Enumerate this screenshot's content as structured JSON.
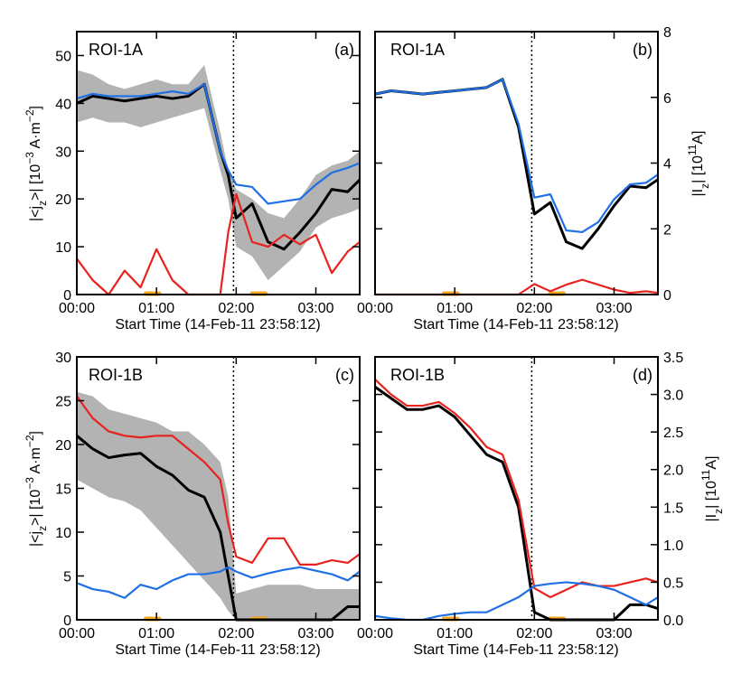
{
  "colors": {
    "black": "#000000",
    "red": "#e8221f",
    "blue": "#1f6fe5",
    "band": "#b3b3b3",
    "marker": "#f5a623"
  },
  "xaxis": {
    "ticks": [
      0,
      60,
      120,
      180
    ],
    "tick_labels": [
      "00:00",
      "01:00",
      "02:00",
      "03:00"
    ],
    "xlim": [
      0,
      213
    ],
    "xlabel": "Start Time (14-Feb-11 23:58:12)",
    "vline_x": 118
  },
  "markers": [
    {
      "x0": 52,
      "x1": 62
    },
    {
      "x0": 132,
      "x1": 142
    }
  ],
  "chart_data": [
    {
      "type": "line",
      "panel": "(a)",
      "roi": "ROI-1A",
      "ylabel": "|<j_z>| [10^-3 A·m^-2]",
      "ylim": [
        0,
        55
      ],
      "yticks": [
        0,
        10,
        20,
        30,
        40,
        50
      ],
      "ytick_labels": [
        "0",
        "10",
        "20",
        "30",
        "40",
        "50"
      ],
      "x": [
        0,
        12,
        24,
        36,
        48,
        60,
        72,
        84,
        96,
        108,
        114,
        120,
        132,
        144,
        156,
        168,
        180,
        192,
        204,
        213
      ],
      "band": {
        "lower": [
          36,
          37,
          36,
          36,
          35,
          36,
          37,
          38,
          39,
          26,
          20,
          10,
          8,
          3,
          6,
          9,
          14,
          16,
          17,
          18
        ],
        "upper": [
          47,
          46,
          44,
          43,
          44,
          45,
          44,
          44,
          48,
          34,
          26,
          22,
          20,
          17,
          16,
          20,
          25,
          27,
          28,
          30
        ]
      },
      "series": [
        {
          "name": "black",
          "color": "black",
          "values": [
            40,
            41.5,
            41,
            40.5,
            41,
            41.5,
            41,
            41.5,
            44,
            30,
            25,
            16,
            19,
            11,
            9.5,
            13,
            17,
            22,
            21.5,
            24
          ]
        },
        {
          "name": "blue",
          "color": "blue",
          "values": [
            41,
            42,
            41.5,
            41.5,
            41.5,
            42,
            42.5,
            42,
            44,
            30,
            26,
            23,
            22.5,
            19,
            19.5,
            20,
            23,
            25.5,
            26.5,
            27.5
          ]
        },
        {
          "name": "red",
          "color": "red",
          "values": [
            7.5,
            3,
            0,
            5,
            1.5,
            9.5,
            3,
            0,
            0,
            0,
            13,
            21,
            11,
            10,
            12.5,
            10.5,
            12.5,
            4.5,
            9,
            11
          ]
        }
      ]
    },
    {
      "type": "line",
      "panel": "(b)",
      "roi": "ROI-1A",
      "ylabel": "|I_z| [10^11 A]",
      "ylim": [
        0,
        8
      ],
      "yticks": [
        0,
        2,
        4,
        6,
        8
      ],
      "ytick_labels": [
        "0",
        "2",
        "4",
        "6",
        "8"
      ],
      "x": [
        0,
        12,
        24,
        36,
        48,
        60,
        72,
        84,
        96,
        108,
        120,
        132,
        144,
        156,
        168,
        180,
        192,
        204,
        213
      ],
      "series": [
        {
          "name": "black",
          "color": "black",
          "values": [
            6.1,
            6.2,
            6.15,
            6.1,
            6.15,
            6.2,
            6.25,
            6.3,
            6.55,
            5.1,
            2.45,
            2.8,
            1.6,
            1.4,
            2.0,
            2.7,
            3.3,
            3.25,
            3.5
          ]
        },
        {
          "name": "blue",
          "color": "blue",
          "values": [
            6.1,
            6.2,
            6.15,
            6.1,
            6.15,
            6.2,
            6.25,
            6.3,
            6.55,
            5.2,
            2.95,
            3.05,
            1.95,
            1.9,
            2.2,
            2.9,
            3.35,
            3.4,
            3.65
          ]
        },
        {
          "name": "red",
          "color": "red",
          "values": [
            0,
            0,
            0,
            0,
            0,
            0,
            0,
            0,
            0,
            0,
            0.32,
            0.1,
            0.3,
            0.45,
            0.3,
            0.15,
            0.05,
            0.1,
            0.05
          ]
        }
      ]
    },
    {
      "type": "line",
      "panel": "(c)",
      "roi": "ROI-1B",
      "ylabel": "|<j_z>| [10^-3 A·m^-2]",
      "ylim": [
        0,
        30
      ],
      "yticks": [
        0,
        5,
        10,
        15,
        20,
        25,
        30
      ],
      "ytick_labels": [
        "0",
        "5",
        "10",
        "15",
        "20",
        "25",
        "30"
      ],
      "x": [
        0,
        12,
        24,
        36,
        48,
        60,
        72,
        84,
        96,
        108,
        114,
        120,
        132,
        144,
        156,
        168,
        180,
        192,
        204,
        213
      ],
      "band": {
        "lower": [
          16,
          15,
          14,
          13.5,
          12.5,
          10.5,
          8.5,
          6.5,
          4.5,
          2.5,
          1,
          0,
          0,
          0,
          0,
          0,
          0,
          0,
          0,
          0
        ],
        "upper": [
          26,
          25.5,
          24,
          23.5,
          23,
          22.5,
          21.5,
          21.5,
          20,
          18,
          14,
          3,
          3.5,
          4,
          4,
          4,
          3.5,
          3.5,
          3.5,
          3.5
        ]
      },
      "series": [
        {
          "name": "black",
          "color": "black",
          "values": [
            21,
            19.5,
            18.5,
            18.8,
            19,
            17.5,
            16.5,
            14.8,
            14,
            10,
            5,
            0,
            0,
            0,
            0,
            0,
            0,
            0,
            1.5,
            1.5
          ]
        },
        {
          "name": "red",
          "color": "red",
          "values": [
            25.5,
            23,
            21.5,
            21,
            20.8,
            21,
            21,
            19.5,
            18,
            16,
            11,
            7.2,
            6.5,
            9.3,
            9.3,
            6.3,
            6.3,
            6.8,
            6.5,
            7.5
          ]
        },
        {
          "name": "blue",
          "color": "blue",
          "values": [
            4.2,
            3.5,
            3.2,
            2.5,
            4,
            3.5,
            4.5,
            5.2,
            5.2,
            5.5,
            6,
            5.5,
            4.8,
            5.3,
            5.7,
            6,
            5.6,
            5.2,
            4.5,
            5.5
          ]
        }
      ]
    },
    {
      "type": "line",
      "panel": "(d)",
      "roi": "ROI-1B",
      "ylabel": "|I_z| [10^11 A]",
      "ylim": [
        0,
        3.5
      ],
      "yticks": [
        0,
        0.5,
        1.0,
        1.5,
        2.0,
        2.5,
        3.0,
        3.5
      ],
      "ytick_labels": [
        "0.0",
        "0.5",
        "1.0",
        "1.5",
        "2.0",
        "2.5",
        "3.0",
        "3.5"
      ],
      "x": [
        0,
        12,
        24,
        36,
        48,
        60,
        72,
        84,
        96,
        108,
        120,
        132,
        144,
        156,
        168,
        180,
        192,
        204,
        213
      ],
      "series": [
        {
          "name": "black",
          "color": "black",
          "values": [
            3.1,
            2.95,
            2.8,
            2.8,
            2.85,
            2.7,
            2.45,
            2.2,
            2.1,
            1.5,
            0.1,
            0,
            0,
            0,
            0,
            0,
            0.2,
            0.2,
            0.15
          ]
        },
        {
          "name": "red",
          "color": "red",
          "values": [
            3.2,
            3.0,
            2.85,
            2.85,
            2.9,
            2.75,
            2.55,
            2.3,
            2.2,
            1.6,
            0.42,
            0.3,
            0.4,
            0.5,
            0.45,
            0.45,
            0.5,
            0.55,
            0.5
          ]
        },
        {
          "name": "blue",
          "color": "blue",
          "values": [
            0.05,
            0.02,
            0,
            0,
            0.05,
            0.08,
            0.1,
            0.1,
            0.2,
            0.3,
            0.45,
            0.48,
            0.5,
            0.48,
            0.45,
            0.4,
            0.3,
            0.2,
            0.3
          ]
        }
      ]
    }
  ],
  "panels": [
    {
      "roi": "ROI-1A",
      "label": "(a)",
      "xlabel": "Start Time (14-Feb-11 23:58:12)",
      "ylabel_main": "|<j",
      "ylabel_sub": "z",
      "ylabel_end": ">| [10",
      "ylabel_exp": "−3",
      "ylabel_unit": " A·m",
      "ylabel_unit_exp": "−2",
      "ylabel_close": "]"
    },
    {
      "roi": "ROI-1A",
      "label": "(b)",
      "xlabel": "Start Time (14-Feb-11 23:58:12)",
      "ylabel_main": "|I",
      "ylabel_sub": "z",
      "ylabel_end": "| [10",
      "ylabel_exp": "11",
      "ylabel_unit": "A]"
    },
    {
      "roi": "ROI-1B",
      "label": "(c)",
      "xlabel": "Start Time (14-Feb-11 23:58:12)",
      "ylabel_main": "|<j",
      "ylabel_sub": "z",
      "ylabel_end": ">| [10",
      "ylabel_exp": "−3",
      "ylabel_unit": " A·m",
      "ylabel_unit_exp": "−2",
      "ylabel_close": "]"
    },
    {
      "roi": "ROI-1B",
      "label": "(d)",
      "xlabel": "Start Time (14-Feb-11 23:58:12)",
      "ylabel_main": "|I",
      "ylabel_sub": "z",
      "ylabel_end": "| [10",
      "ylabel_exp": "11",
      "ylabel_unit": "A]"
    }
  ]
}
